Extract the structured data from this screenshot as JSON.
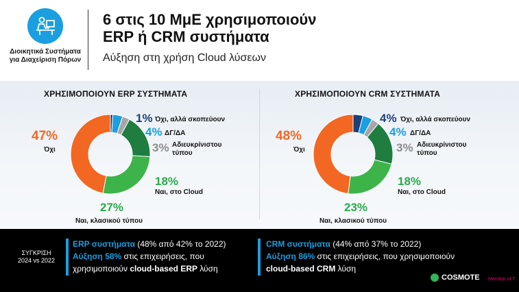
{
  "header": {
    "logo_label_line1": "Διοικητικά Συστήματα",
    "logo_label_line2": "για Διαχείριση Πόρων",
    "title_line1": "6 στις 10 ΜμΕ χρησιμοποιούν",
    "title_line2": "ERP ή CRM συστήματα",
    "subtitle": "Αύξηση στη χρήση Cloud λύσεων"
  },
  "colors": {
    "orange": "#f26722",
    "light_green": "#3cb44a",
    "dark_green": "#1e7d3f",
    "grey": "#a6a6a6",
    "light_blue": "#1a9fe0",
    "dark_blue": "#1d3f7a"
  },
  "chart_data": [
    {
      "type": "pie",
      "title": "ΧΡΗΣΙΜΟΠΟΙΟΥΝ ERP ΣΥΣΤΗΜΑΤΑ",
      "slices": [
        {
          "label": "Όχι, αλλά σκοπεύουν",
          "value": 1,
          "display": "1%",
          "color_key": "dark_blue"
        },
        {
          "label": "ΔΓ/ΔΑ",
          "value": 4,
          "display": "4%",
          "color_key": "light_blue"
        },
        {
          "label": "Αδιευκρίνιστου τύπου",
          "value": 3,
          "display": "3%",
          "color_key": "grey"
        },
        {
          "label": "Ναι, στο Cloud",
          "value": 18,
          "display": "18%",
          "color_key": "dark_green"
        },
        {
          "label": "Ναι, κλασικού τύπου",
          "value": 27,
          "display": "27%",
          "color_key": "light_green"
        },
        {
          "label": "Όχι",
          "value": 47,
          "display": "47%",
          "color_key": "orange"
        }
      ]
    },
    {
      "type": "pie",
      "title": "ΧΡΗΣΙΜΟΠΟΙΟΥΝ CRM ΣΥΣΤΗΜΑΤΑ",
      "slices": [
        {
          "label": "Όχι, αλλά σκοπεύουν",
          "value": 4,
          "display": "4%",
          "color_key": "dark_blue"
        },
        {
          "label": "ΔΓ/ΔΑ",
          "value": 4,
          "display": "4%",
          "color_key": "light_blue"
        },
        {
          "label": "Αδιευκρίνιστου τύπου",
          "value": 3,
          "display": "3%",
          "color_key": "grey"
        },
        {
          "label": "Ναι, στο Cloud",
          "value": 18,
          "display": "18%",
          "color_key": "dark_green"
        },
        {
          "label": "Ναι, κλασικού τύπου",
          "value": 23,
          "display": "23%",
          "color_key": "light_green"
        },
        {
          "label": "Όχι",
          "value": 48,
          "display": "48%",
          "color_key": "orange"
        }
      ]
    }
  ],
  "footer": {
    "comparison_line1": "ΣΥΓΚΡΙΣΗ",
    "comparison_line2": "2024 vs 2022",
    "erp": {
      "name": "ERP συστήματα",
      "detail": " (48% από 42% το 2022)",
      "growth": "Αύξηση 58%",
      "growth_rest": " στις επιχειρήσεις, που",
      "line3_pre": "χρησιμοποιούν ",
      "line3_bold": "cloud-based ERP",
      "line3_post": " λύση"
    },
    "crm": {
      "name": "CRM συστήματα",
      "detail": " (44% από 37% το 2022)",
      "growth": "Αύξηση 86%",
      "growth_rest": " στις επιχειρήσεις, που χρησιμοποιούν",
      "line3_bold": "cloud-based CRM",
      "line3_post": " λύση"
    },
    "brand": "COSMOTE",
    "partner": "Member of T"
  }
}
